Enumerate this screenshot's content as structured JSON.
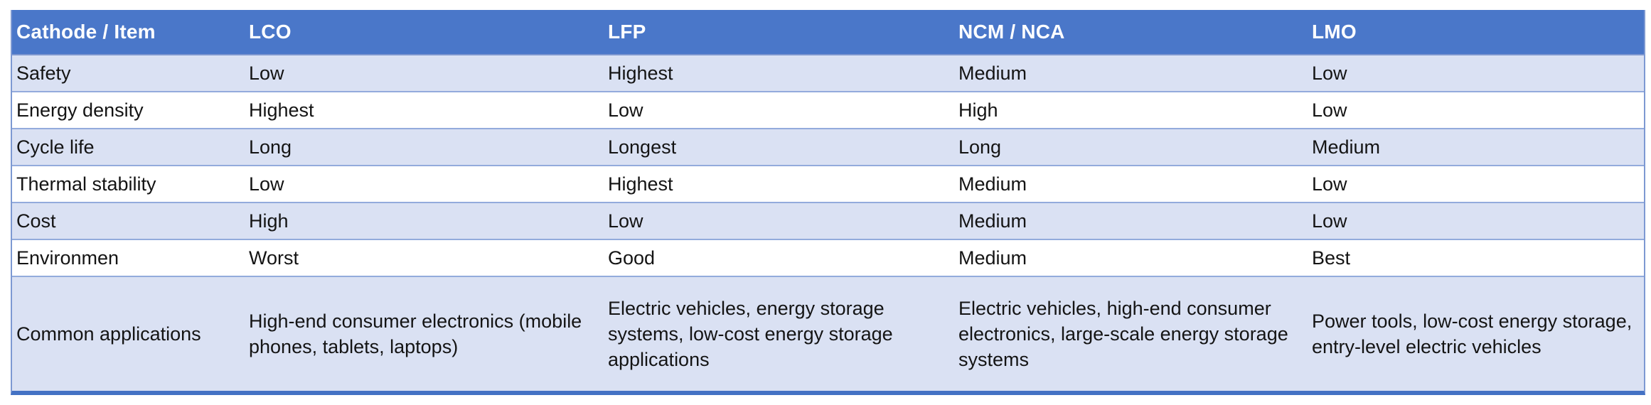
{
  "colors": {
    "header_bg": "#4a77c9",
    "header_text": "#ffffff",
    "banded_row_bg": "#dae1f3",
    "plain_row_bg": "#ffffff",
    "row_divider": "#93abdc",
    "outer_side_border": "#7d99d2",
    "bottom_border": "#4472c4",
    "body_text": "#141414"
  },
  "table": {
    "headers": [
      "Cathode / Item",
      "LCO",
      "LFP",
      "NCM / NCA",
      "LMO"
    ],
    "rows": [
      {
        "label": "Safety",
        "values": [
          "Low",
          "Highest",
          "Medium",
          "Low"
        ]
      },
      {
        "label": "Energy density",
        "values": [
          "Highest",
          "Low",
          "High",
          "Low"
        ]
      },
      {
        "label": "Cycle life",
        "values": [
          "Long",
          "Longest",
          "Long",
          "Medium"
        ]
      },
      {
        "label": "Thermal stability",
        "values": [
          "Low",
          "Highest",
          "Medium",
          "Low"
        ]
      },
      {
        "label": "Cost",
        "values": [
          "High",
          "Low",
          "Medium",
          "Low"
        ]
      },
      {
        "label": "Environmen",
        "values": [
          "Worst",
          "Good",
          "Medium",
          "Best"
        ]
      },
      {
        "label": "Common applications",
        "values": [
          "High-end consumer electronics (mobile phones, tablets, laptops)",
          "Electric vehicles, energy storage systems, low-cost energy storage applications",
          "Electric vehicles, high-end consumer electronics, large-scale energy storage systems",
          "Power tools, low-cost energy storage, entry-level electric vehicles"
        ]
      }
    ]
  }
}
